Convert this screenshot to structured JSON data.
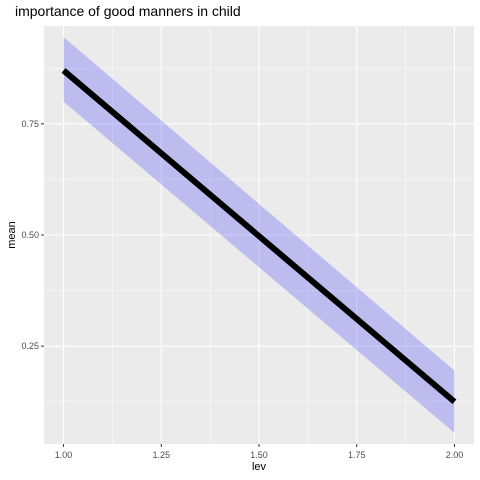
{
  "chart_data": {
    "type": "line",
    "title": "importance of good manners in child",
    "xlabel": "lev",
    "ylabel": "mean",
    "xlim": [
      0.95,
      2.05
    ],
    "ylim": [
      0.03,
      0.97
    ],
    "x_ticks": [
      1.0,
      1.25,
      1.5,
      1.75,
      2.0
    ],
    "x_tick_labels": [
      "1.00",
      "1.25",
      "1.50",
      "1.75",
      "2.00"
    ],
    "y_ticks": [
      0.25,
      0.5,
      0.75
    ],
    "y_tick_labels": [
      "0.25",
      "0.50",
      "0.75"
    ],
    "grid": true,
    "series": [
      {
        "x": [
          1.0,
          2.0
        ],
        "y": [
          0.87,
          0.125
        ],
        "ymin": [
          0.8,
          0.055
        ],
        "ymax": [
          0.945,
          0.195
        ],
        "line_color": "#000000",
        "ribbon_color": "#0000ff",
        "ribbon_opacity": 0.2
      }
    ],
    "panel_background": "#ebebeb",
    "grid_color": "#ffffff"
  }
}
